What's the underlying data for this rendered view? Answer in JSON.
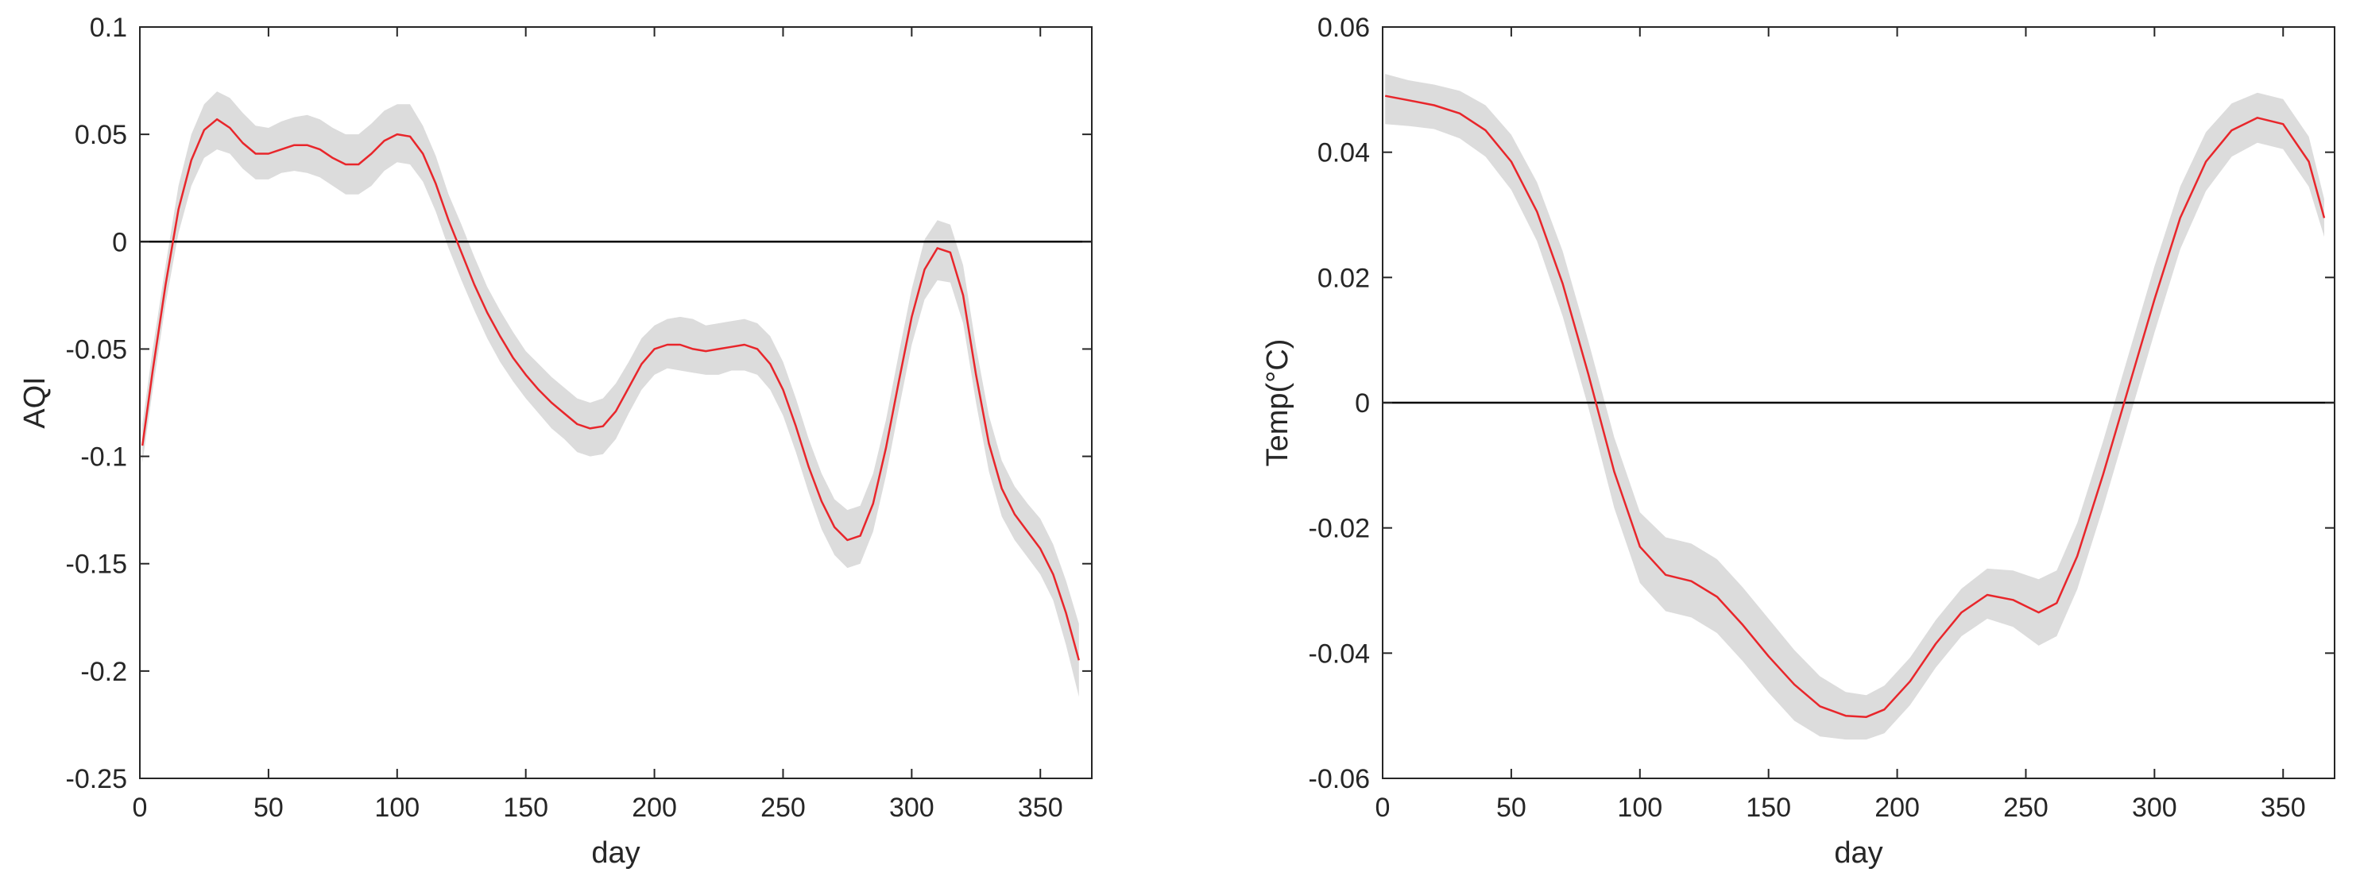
{
  "chart_data": [
    {
      "type": "line",
      "title": "",
      "xlabel": "day",
      "ylabel": "AQI",
      "xlim": [
        0,
        370
      ],
      "ylim": [
        -0.25,
        0.1
      ],
      "xticks": [
        0,
        50,
        100,
        150,
        200,
        250,
        300,
        350
      ],
      "yticks": [
        0.1,
        0.05,
        0,
        -0.05,
        -0.1,
        -0.15,
        -0.2,
        -0.25
      ],
      "ytick_labels": [
        "0.1",
        "0.05",
        "0",
        "-0.05",
        "-0.1",
        "-0.15",
        "-0.2",
        "-0.25"
      ],
      "grid": false,
      "reference_line": 0,
      "line_color": "#e8262b",
      "band_color": "#dcdcdc",
      "series": [
        {
          "x": [
            1,
            5,
            10,
            15,
            20,
            25,
            30,
            35,
            40,
            45,
            50,
            55,
            60,
            65,
            70,
            75,
            80,
            85,
            90,
            95,
            100,
            105,
            110,
            115,
            120,
            125,
            130,
            135,
            140,
            145,
            150,
            155,
            160,
            165,
            170,
            175,
            180,
            185,
            190,
            195,
            200,
            205,
            210,
            215,
            220,
            225,
            230,
            235,
            240,
            245,
            250,
            255,
            260,
            265,
            270,
            275,
            280,
            285,
            290,
            295,
            300,
            305,
            310,
            315,
            320,
            325,
            330,
            335,
            340,
            345,
            350,
            355,
            360,
            365
          ],
          "y": [
            -0.095,
            -0.06,
            -0.02,
            0.015,
            0.038,
            0.052,
            0.057,
            0.053,
            0.046,
            0.041,
            0.041,
            0.043,
            0.045,
            0.045,
            0.043,
            0.039,
            0.036,
            0.036,
            0.041,
            0.047,
            0.05,
            0.049,
            0.041,
            0.027,
            0.01,
            -0.005,
            -0.02,
            -0.033,
            -0.044,
            -0.054,
            -0.062,
            -0.069,
            -0.075,
            -0.08,
            -0.085,
            -0.087,
            -0.086,
            -0.079,
            -0.068,
            -0.057,
            -0.05,
            -0.048,
            -0.048,
            -0.05,
            -0.051,
            -0.05,
            -0.049,
            -0.048,
            -0.05,
            -0.057,
            -0.069,
            -0.086,
            -0.105,
            -0.121,
            -0.133,
            -0.139,
            -0.137,
            -0.122,
            -0.096,
            -0.065,
            -0.035,
            -0.013,
            -0.003,
            -0.005,
            -0.025,
            -0.062,
            -0.094,
            -0.115,
            -0.127,
            -0.135,
            -0.143,
            -0.155,
            -0.173,
            -0.195
          ],
          "lower": [
            -0.103,
            -0.069,
            -0.029,
            0.004,
            0.026,
            0.039,
            0.043,
            0.041,
            0.034,
            0.029,
            0.029,
            0.032,
            0.033,
            0.032,
            0.03,
            0.026,
            0.022,
            0.022,
            0.026,
            0.033,
            0.037,
            0.036,
            0.028,
            0.014,
            -0.003,
            -0.018,
            -0.032,
            -0.045,
            -0.056,
            -0.065,
            -0.073,
            -0.08,
            -0.087,
            -0.092,
            -0.098,
            -0.1,
            -0.099,
            -0.092,
            -0.08,
            -0.069,
            -0.062,
            -0.059,
            -0.06,
            -0.061,
            -0.062,
            -0.062,
            -0.06,
            -0.06,
            -0.062,
            -0.069,
            -0.081,
            -0.098,
            -0.117,
            -0.134,
            -0.146,
            -0.152,
            -0.15,
            -0.135,
            -0.109,
            -0.078,
            -0.048,
            -0.027,
            -0.018,
            -0.019,
            -0.038,
            -0.075,
            -0.107,
            -0.128,
            -0.139,
            -0.147,
            -0.155,
            -0.167,
            -0.188,
            -0.212
          ],
          "upper": [
            -0.085,
            -0.05,
            -0.011,
            0.026,
            0.05,
            0.064,
            0.07,
            0.067,
            0.06,
            0.054,
            0.053,
            0.056,
            0.058,
            0.059,
            0.057,
            0.053,
            0.05,
            0.05,
            0.055,
            0.061,
            0.064,
            0.064,
            0.054,
            0.04,
            0.022,
            0.008,
            -0.007,
            -0.021,
            -0.032,
            -0.042,
            -0.051,
            -0.057,
            -0.063,
            -0.068,
            -0.073,
            -0.075,
            -0.073,
            -0.066,
            -0.056,
            -0.045,
            -0.039,
            -0.036,
            -0.035,
            -0.036,
            -0.039,
            -0.038,
            -0.037,
            -0.036,
            -0.038,
            -0.044,
            -0.056,
            -0.073,
            -0.092,
            -0.108,
            -0.12,
            -0.125,
            -0.123,
            -0.108,
            -0.083,
            -0.052,
            -0.022,
            0.001,
            0.01,
            0.008,
            -0.011,
            -0.049,
            -0.081,
            -0.102,
            -0.114,
            -0.122,
            -0.129,
            -0.141,
            -0.158,
            -0.178
          ]
        }
      ]
    },
    {
      "type": "line",
      "title": "",
      "xlabel": "day",
      "ylabel": "Temp(°C)",
      "xlim": [
        0,
        370
      ],
      "ylim": [
        -0.06,
        0.06
      ],
      "xticks": [
        0,
        50,
        100,
        150,
        200,
        250,
        300,
        350
      ],
      "yticks": [
        0.06,
        0.04,
        0.02,
        0,
        -0.02,
        -0.04,
        -0.06
      ],
      "ytick_labels": [
        "0.06",
        "0.04",
        "0.02",
        "0",
        "-0.02",
        "-0.04",
        "-0.06"
      ],
      "grid": false,
      "reference_line": 0,
      "line_color": "#e8262b",
      "band_color": "#dcdcdc",
      "series": [
        {
          "x": [
            1,
            10,
            20,
            30,
            40,
            50,
            60,
            70,
            80,
            90,
            100,
            110,
            120,
            130,
            140,
            150,
            160,
            170,
            180,
            188,
            195,
            205,
            215,
            225,
            235,
            245,
            255,
            262,
            270,
            280,
            290,
            300,
            310,
            320,
            330,
            340,
            350,
            360,
            366
          ],
          "y": [
            0.049,
            0.0483,
            0.0475,
            0.0462,
            0.0435,
            0.0385,
            0.0305,
            0.019,
            0.0045,
            -0.011,
            -0.023,
            -0.0275,
            -0.0285,
            -0.031,
            -0.0355,
            -0.0405,
            -0.045,
            -0.0485,
            -0.05,
            -0.0502,
            -0.049,
            -0.0445,
            -0.0385,
            -0.0335,
            -0.0307,
            -0.0315,
            -0.0335,
            -0.032,
            -0.0245,
            -0.0115,
            0.0025,
            0.0165,
            0.0295,
            0.0385,
            0.0435,
            0.0455,
            0.0445,
            0.0385,
            0.0295
          ],
          "lower": [
            0.0445,
            0.0442,
            0.0437,
            0.0422,
            0.0393,
            0.034,
            0.0258,
            0.0138,
            -0.0008,
            -0.0168,
            -0.0288,
            -0.0333,
            -0.0343,
            -0.0368,
            -0.0413,
            -0.0463,
            -0.0508,
            -0.0533,
            -0.0538,
            -0.0538,
            -0.0528,
            -0.0483,
            -0.0423,
            -0.0373,
            -0.0345,
            -0.0358,
            -0.0388,
            -0.0373,
            -0.0298,
            -0.0168,
            -0.0028,
            0.0112,
            0.0245,
            0.0338,
            0.0393,
            0.0415,
            0.0405,
            0.0345,
            0.0265
          ],
          "upper": [
            0.0525,
            0.0515,
            0.0508,
            0.0498,
            0.0475,
            0.0428,
            0.0352,
            0.0242,
            0.0098,
            -0.0055,
            -0.0175,
            -0.0215,
            -0.0225,
            -0.025,
            -0.0295,
            -0.0345,
            -0.0395,
            -0.0437,
            -0.0462,
            -0.0467,
            -0.0452,
            -0.0407,
            -0.0347,
            -0.0297,
            -0.0265,
            -0.0268,
            -0.0282,
            -0.0268,
            -0.0192,
            -0.0062,
            0.0078,
            0.0218,
            0.0345,
            0.0432,
            0.0478,
            0.0495,
            0.0485,
            0.0425,
            0.0325
          ]
        }
      ]
    }
  ]
}
